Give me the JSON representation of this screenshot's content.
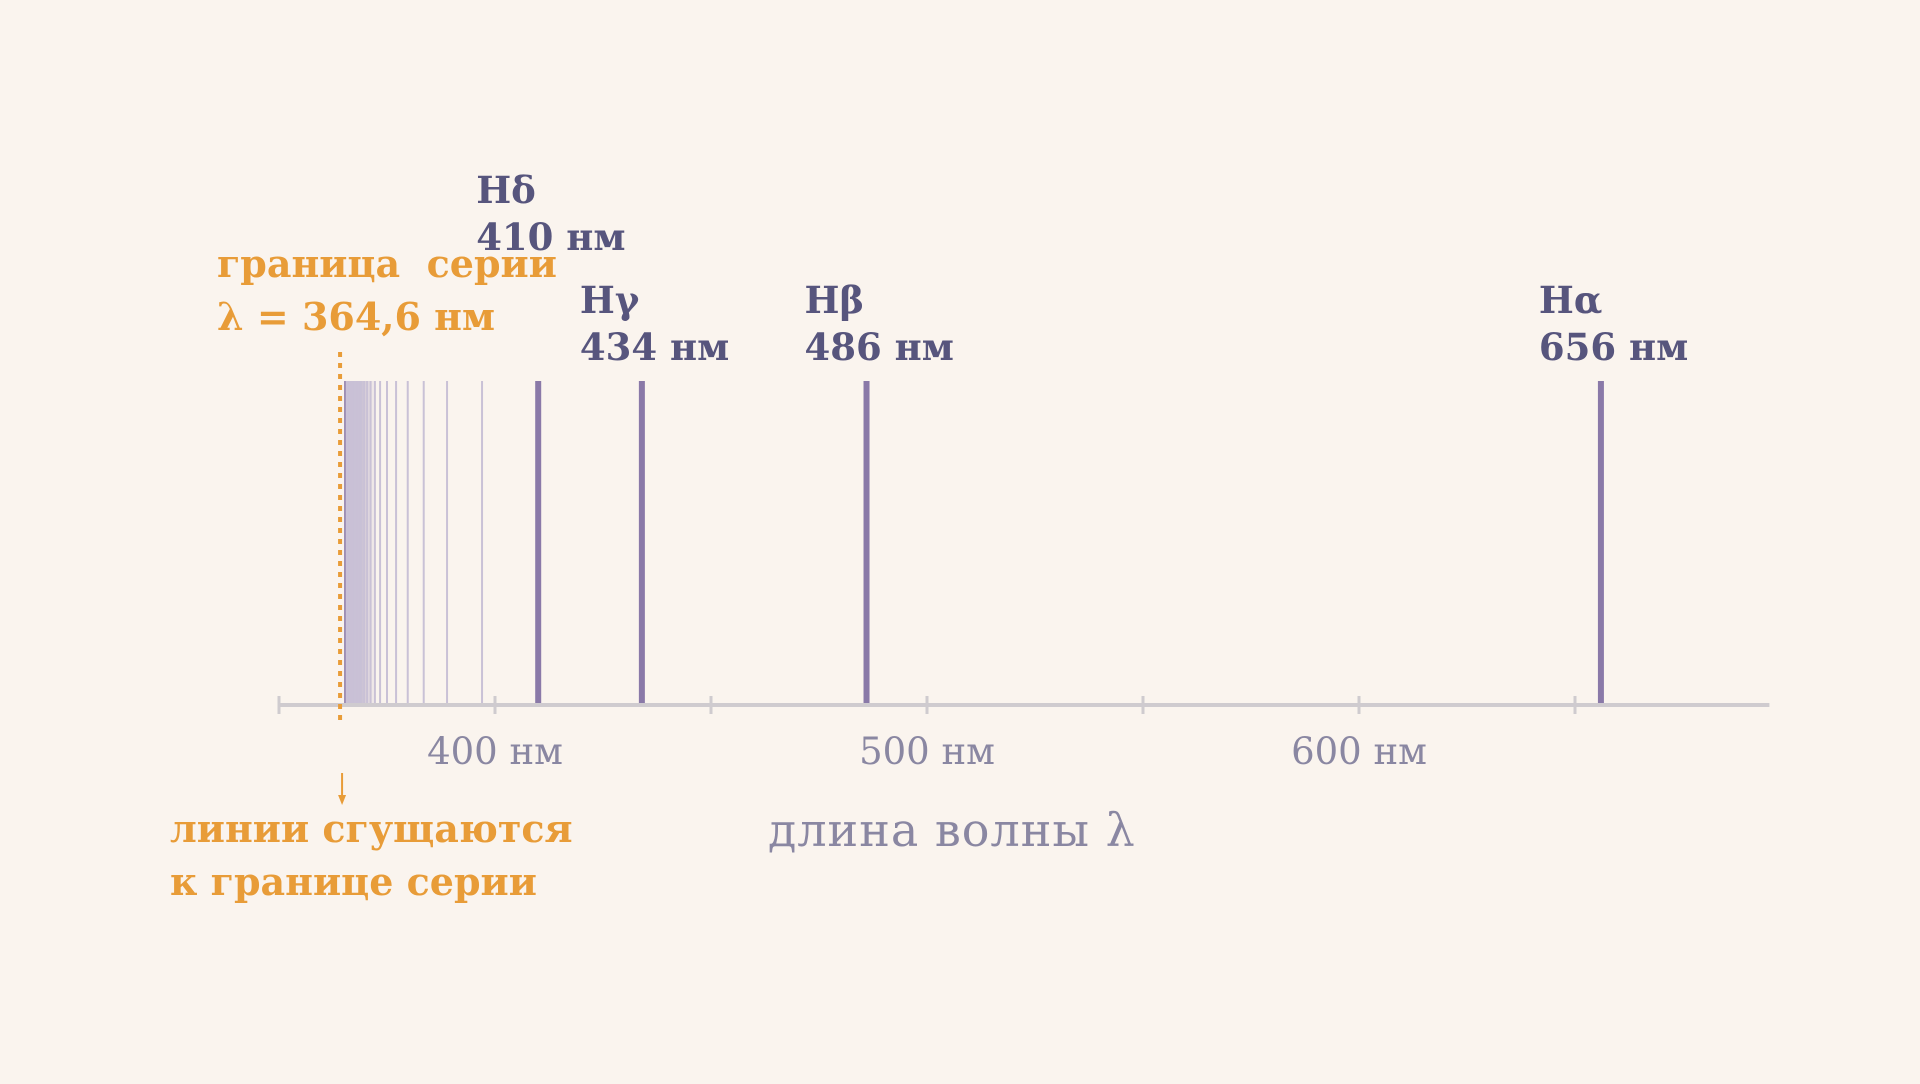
{
  "diagram": {
    "axis_title": "длина волны λ",
    "wavelength_unit": "нм",
    "axis_range_nm": [
      350,
      695
    ],
    "ticks": [
      {
        "value": 350,
        "label": ""
      },
      {
        "value": 400,
        "label": "400 нм"
      },
      {
        "value": 450,
        "label": ""
      },
      {
        "value": 500,
        "label": "500 нм"
      },
      {
        "value": 550,
        "label": ""
      },
      {
        "value": 600,
        "label": "600 нм"
      },
      {
        "value": 650,
        "label": ""
      }
    ],
    "series_limit": {
      "wavelength": 364.6,
      "label_line1": "граница  серии",
      "label_line2": "λ = 364,6 нм"
    },
    "convergence_note": {
      "line1": "линии сгущаются",
      "line2": "к границе серии"
    },
    "labeled_lines": [
      {
        "name": "Hδ",
        "wavelength": 410,
        "label": "410 нм"
      },
      {
        "name": "Hγ",
        "wavelength": 434,
        "label": "434 нм"
      },
      {
        "name": "Hβ",
        "wavelength": 486,
        "label": "486 нм"
      },
      {
        "name": "Hα",
        "wavelength": 656,
        "label": "656 нм"
      }
    ],
    "faint_lines_nm": [
      397.0,
      388.9,
      383.5,
      379.8,
      377.1,
      375.0,
      373.4,
      372.2,
      371.2,
      370.4,
      369.7,
      369.1,
      368.7,
      368.3,
      367.9,
      367.6,
      367.3,
      367.1,
      366.9,
      366.7,
      366.5,
      366.3,
      366.1,
      366.0,
      365.9,
      365.8,
      365.7
    ],
    "colors": {
      "background": "#faf4ee",
      "spectral_line": "#8a79a8",
      "faint_line": "#c9c1d6",
      "axis": "#cfcbcf",
      "accent_orange": "#e89c38",
      "label_dark": "#57557d",
      "tick_text": "#8a87a2"
    }
  }
}
